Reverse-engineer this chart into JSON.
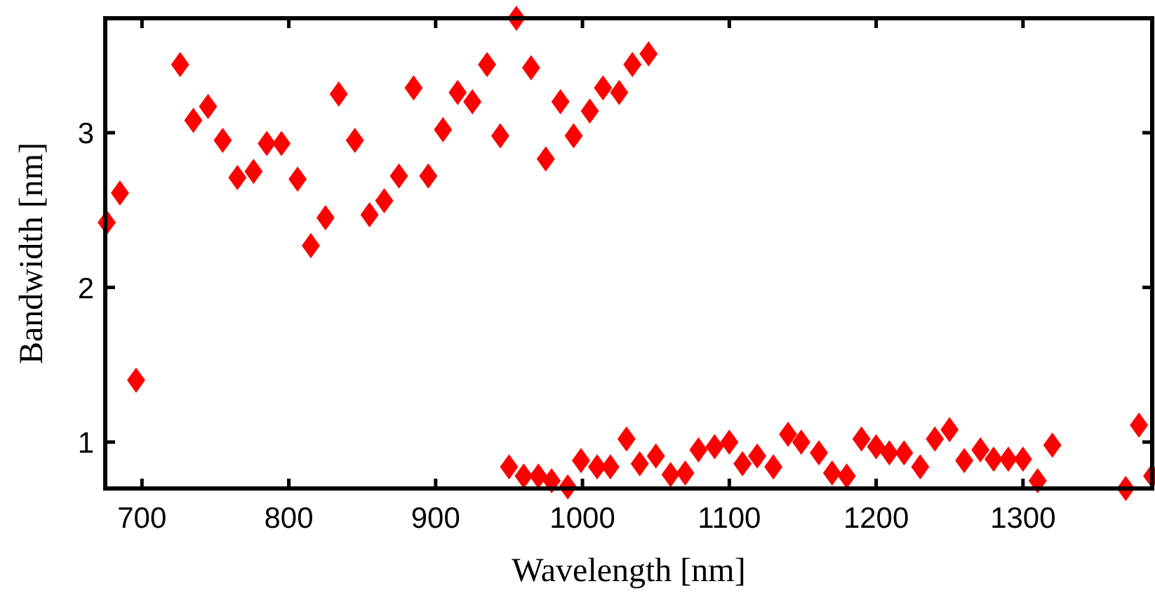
{
  "chart_data": {
    "type": "scatter",
    "xlabel": "Wavelength [nm]",
    "ylabel": "Bandwidth [nm]",
    "xlim": [
      675,
      1388
    ],
    "ylim": [
      0.7,
      3.74
    ],
    "xticks": [
      700,
      800,
      900,
      1000,
      1100,
      1200,
      1300
    ],
    "yticks": [
      1,
      2,
      3
    ],
    "grid": false,
    "marker": "diamond",
    "series": [
      {
        "color": "#ff0000",
        "x": [
          676,
          685,
          696,
          726,
          735,
          745,
          755,
          765,
          776,
          785,
          795,
          806,
          815,
          825,
          834,
          845,
          855,
          865,
          875,
          885,
          895,
          905,
          915,
          925,
          935,
          944,
          955,
          965,
          975,
          985,
          994,
          1005,
          1014,
          1025,
          1034,
          1045,
          950,
          960,
          970,
          979,
          990,
          999,
          1010,
          1019,
          1030,
          1039,
          1050,
          1060,
          1070,
          1079,
          1090,
          1100,
          1109,
          1119,
          1130,
          1140,
          1149,
          1161,
          1170,
          1180,
          1190,
          1200,
          1209,
          1219,
          1230,
          1240,
          1250,
          1260,
          1271,
          1280,
          1290,
          1300,
          1310,
          1320,
          1370,
          1379,
          1388
        ],
        "values": [
          2.42,
          2.61,
          1.4,
          3.44,
          3.08,
          3.17,
          2.95,
          2.71,
          2.75,
          2.93,
          2.93,
          2.7,
          2.27,
          2.45,
          3.25,
          2.95,
          2.47,
          2.56,
          2.72,
          3.29,
          2.72,
          3.02,
          3.26,
          3.2,
          3.44,
          2.98,
          3.74,
          3.42,
          2.83,
          3.2,
          2.98,
          3.14,
          3.29,
          3.26,
          3.44,
          3.51,
          0.84,
          0.78,
          0.78,
          0.75,
          0.71,
          0.88,
          0.84,
          0.84,
          1.02,
          0.86,
          0.91,
          0.79,
          0.8,
          0.95,
          0.97,
          1.0,
          0.86,
          0.91,
          0.84,
          1.05,
          1.0,
          0.93,
          0.8,
          0.78,
          1.02,
          0.97,
          0.93,
          0.93,
          0.84,
          1.02,
          1.08,
          0.88,
          0.95,
          0.89,
          0.89,
          0.89,
          0.75,
          0.98,
          0.7,
          1.11,
          0.78
        ]
      }
    ]
  }
}
